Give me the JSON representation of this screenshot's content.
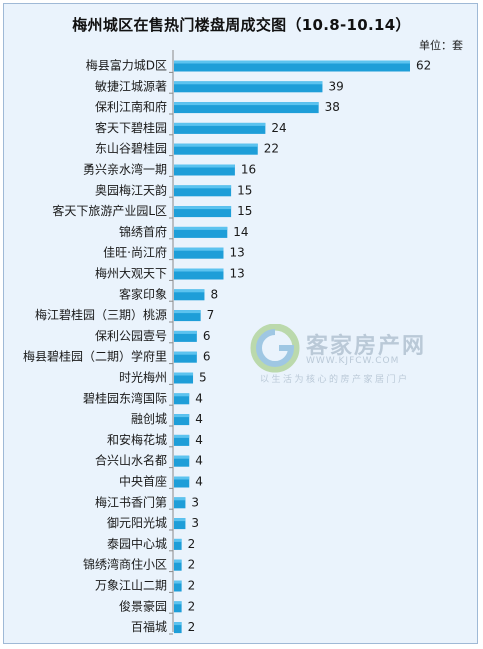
{
  "chart_data": {
    "type": "bar",
    "orientation": "horizontal",
    "title": "梅州城区在售热门楼盘周成交图（10.8-10.14）",
    "unit_label": "单位：套",
    "categories": [
      "梅县富力城D区",
      "敏捷江城源著",
      "保利江南和府",
      "客天下碧桂园",
      "东山谷碧桂园",
      "勇兴亲水湾一期",
      "奥园梅江天韵",
      "客天下旅游产业园L区",
      "锦绣首府",
      "佳旺·尚江府",
      "梅州大观天下",
      "客家印象",
      "梅江碧桂园（三期）桃源",
      "保利公园壹号",
      "梅县碧桂园（二期）学府里",
      "时光梅州",
      "碧桂园东湾国际",
      "融创城",
      "和安梅花城",
      "合兴山水名都",
      "中央首座",
      "梅江书香门第",
      "御元阳光城",
      "泰园中心城",
      "锦绣湾商住小区",
      "万象江山二期",
      "俊景豪园",
      "百福城"
    ],
    "values": [
      62,
      39,
      38,
      24,
      22,
      16,
      15,
      15,
      14,
      13,
      13,
      8,
      7,
      6,
      6,
      5,
      4,
      4,
      4,
      4,
      4,
      3,
      3,
      2,
      2,
      2,
      2,
      2
    ],
    "bar_color": "#1e9ed8",
    "grid": false
  },
  "watermark": {
    "site_name": "客家房产网",
    "url": "WWW.KJFCW.COM",
    "tagline": "以生活为核心的房产家居门户"
  }
}
